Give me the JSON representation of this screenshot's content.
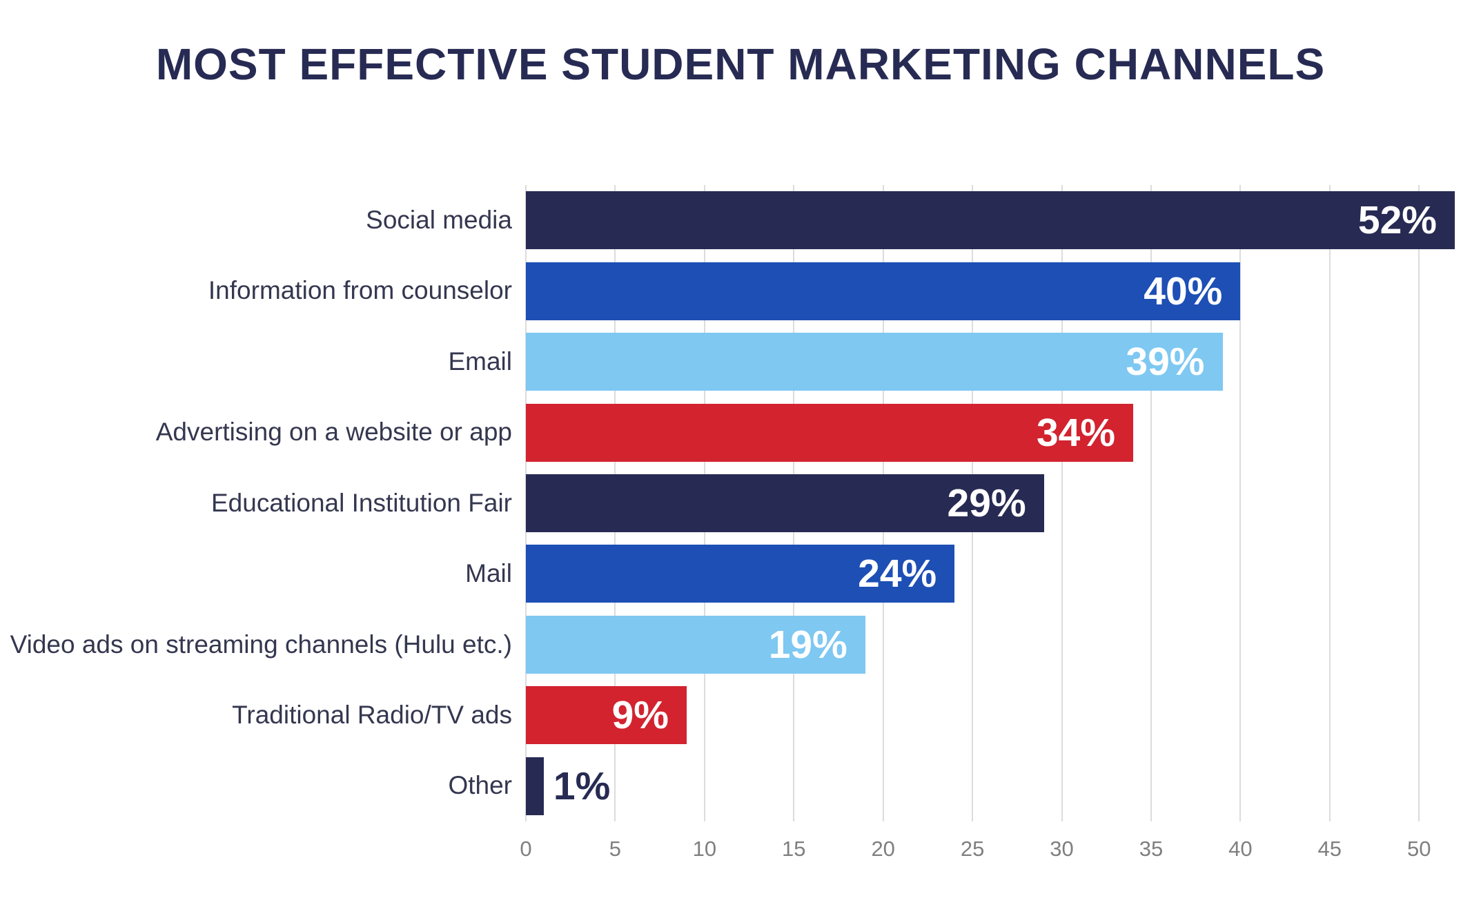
{
  "chart_data": {
    "type": "bar",
    "orientation": "horizontal",
    "title": "MOST EFFECTIVE STUDENT MARKETING CHANNELS",
    "categories": [
      "Social media",
      "Information from counselor",
      "Email",
      "Advertising on a website or app",
      "Educational Institution Fair",
      "Mail",
      "Video ads on streaming channels (Hulu etc.)",
      "Traditional Radio/TV ads",
      "Other"
    ],
    "values": [
      52,
      40,
      39,
      34,
      29,
      24,
      19,
      9,
      1
    ],
    "value_labels": [
      "52%",
      "40%",
      "39%",
      "34%",
      "29%",
      "24%",
      "19%",
      "9%",
      "1%"
    ],
    "bar_colors": [
      "#272b53",
      "#1d4fb5",
      "#7ec8f2",
      "#d2232f",
      "#272b53",
      "#1d4fb5",
      "#7ec8f2",
      "#d2232f",
      "#272b53"
    ],
    "xlabel": "",
    "ylabel": "",
    "xlim": [
      0,
      52
    ],
    "x_ticks": [
      0,
      5,
      10,
      15,
      20,
      25,
      30,
      35,
      40,
      45,
      50
    ],
    "grid": true,
    "legend": "none",
    "colors": {
      "title": "#272b53",
      "grid": "#dcdcdc",
      "tick_label": "#7f7f7f",
      "category_label": "#34374f",
      "value_inside": "#ffffff",
      "background": "#ffffff"
    }
  }
}
